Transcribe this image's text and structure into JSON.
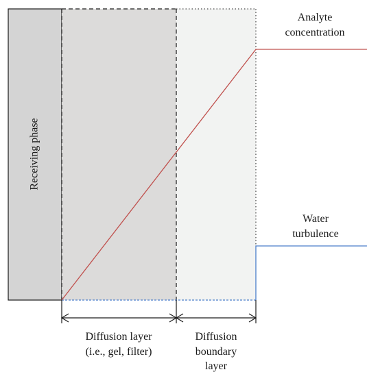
{
  "labels": {
    "receiving_phase": "Receiving phase",
    "analyte_line1": "Analyte",
    "analyte_line2": "concentration",
    "water_line1": "Water",
    "water_line2": "turbulence",
    "diffusion_layer_line1": "Diffusion layer",
    "diffusion_layer_line2": "(i.e., gel, filter)",
    "boundary_line1": "Diffusion",
    "boundary_line2": "boundary",
    "boundary_line3": "layer"
  },
  "colors": {
    "receiving_phase_fill": "#d4d4d4",
    "diffusion_layer_fill": "#dcdbda",
    "boundary_layer_fill": "#f2f3f2",
    "analyte_line": "#c0504d",
    "water_line": "#4a7ec9",
    "outline": "#1a1a1a"
  }
}
